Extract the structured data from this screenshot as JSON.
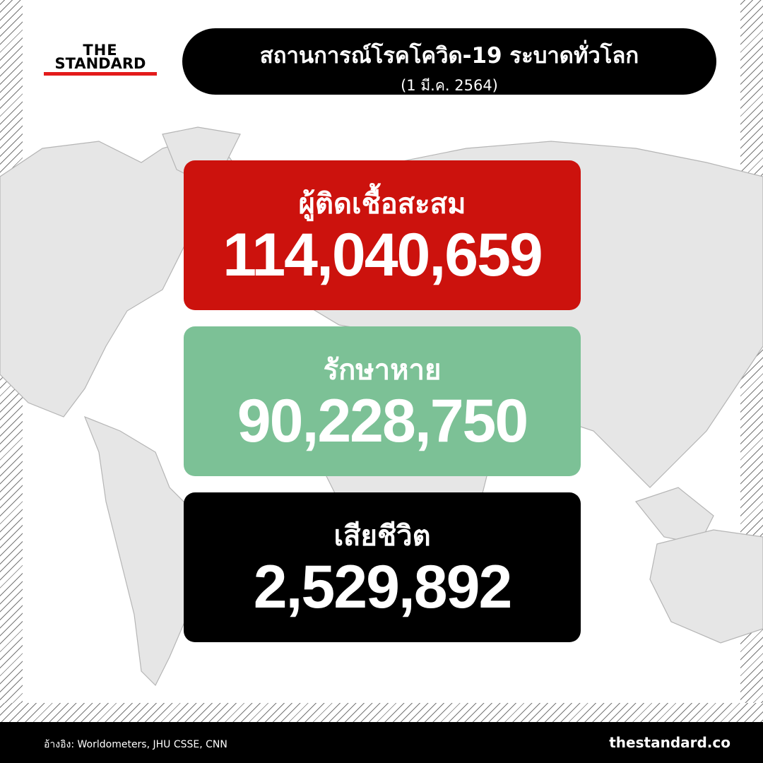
{
  "logo": {
    "line1": "THE",
    "line2": "STANDARD"
  },
  "header": {
    "title": "สถานการณ์โรคโควิด-19 ระบาดทั่วโลก",
    "date": "(1 มี.ค. 2564)"
  },
  "stats": [
    {
      "label": "ผู้ติดเชื้อสะสม",
      "value": "114,040,659",
      "color": "#cc120d"
    },
    {
      "label": "รักษาหาย",
      "value": "90,228,750",
      "color": "#7cc196"
    },
    {
      "label": "เสียชีวิต",
      "value": "2,529,892",
      "color": "#000000"
    }
  ],
  "footer": {
    "source": "อ้างอิง: Worldometers, JHU CSSE, CNN",
    "site": "thestandard.co"
  }
}
